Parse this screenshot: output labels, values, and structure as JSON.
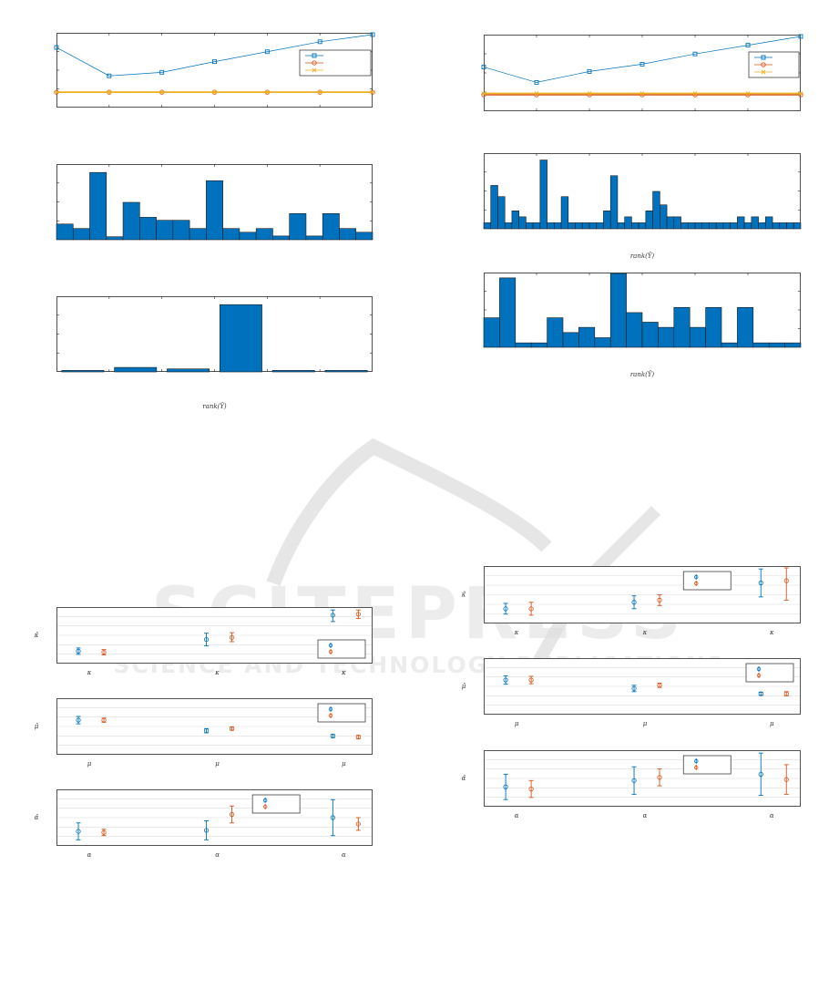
{
  "watermark": {
    "main": "SCITEPRESS",
    "sub": "SCIENCE AND TECHNOLOGY PUBLICATIONS",
    "color": "#dcdcdc"
  },
  "colors": {
    "blue": "#0072bd",
    "orange": "#d95319",
    "yellow": "#edb120",
    "bar_fill": "#0072bd",
    "axis": "#262626",
    "grid": "#dddddd"
  },
  "chart_data": [
    {
      "id": "L1",
      "type": "line",
      "ylim": [
        0,
        1
      ],
      "series": [
        {
          "color": "blue",
          "marker": "square",
          "x": [
            1,
            2,
            3,
            4,
            5,
            6,
            7
          ],
          "y": [
            0.82,
            0.42,
            0.47,
            0.62,
            0.76,
            0.9,
            1.0
          ]
        },
        {
          "color": "orange",
          "marker": "circle",
          "x": [
            1,
            2,
            3,
            4,
            5,
            6,
            7
          ],
          "y": [
            0.19,
            0.19,
            0.19,
            0.19,
            0.19,
            0.19,
            0.19
          ]
        },
        {
          "color": "yellow",
          "marker": "x",
          "x": [
            1,
            2,
            3,
            4,
            5,
            6,
            7
          ],
          "y": [
            0.19,
            0.19,
            0.19,
            0.19,
            0.19,
            0.19,
            0.19
          ]
        }
      ],
      "legend": "top-right"
    },
    {
      "id": "B1",
      "type": "bar",
      "ylim": [
        0,
        1
      ],
      "values": [
        0.21,
        0.15,
        0.9,
        0.04,
        0.5,
        0.3,
        0.26,
        0.26,
        0.15,
        0.79,
        0.15,
        0.1,
        0.15,
        0.05,
        0.35,
        0.05,
        0.35,
        0.15,
        0.1
      ]
    },
    {
      "id": "B2",
      "type": "bar",
      "ylim": [
        0,
        1
      ],
      "xlabel": "rank(Ŷ)",
      "values": [
        0.02,
        0.06,
        0.04,
        0.9,
        0.02,
        0.02
      ]
    },
    {
      "id": "L2",
      "type": "line",
      "ylim": [
        0,
        1
      ],
      "series": [
        {
          "color": "blue",
          "marker": "square",
          "x": [
            1,
            2,
            3,
            4,
            5,
            6,
            7
          ],
          "y": [
            0.58,
            0.37,
            0.52,
            0.62,
            0.76,
            0.88,
            1.0
          ]
        },
        {
          "color": "orange",
          "marker": "circle",
          "x": [
            1,
            2,
            3,
            4,
            5,
            6,
            7
          ],
          "y": [
            0.2,
            0.2,
            0.2,
            0.2,
            0.2,
            0.2,
            0.2
          ]
        },
        {
          "color": "yellow",
          "marker": "x",
          "x": [
            1,
            2,
            3,
            4,
            5,
            6,
            7
          ],
          "y": [
            0.22,
            0.22,
            0.22,
            0.22,
            0.22,
            0.22,
            0.22
          ]
        }
      ],
      "legend": "top-right"
    },
    {
      "id": "B3",
      "type": "bar",
      "ylim": [
        0,
        1
      ],
      "xlabel": "rank(Ŷ)",
      "values": [
        0.08,
        0.58,
        0.43,
        0.08,
        0.24,
        0.16,
        0.08,
        0.08,
        0.92,
        0.08,
        0.08,
        0.43,
        0.08,
        0.08,
        0.08,
        0.08,
        0.08,
        0.24,
        0.71,
        0.08,
        0.16,
        0.08,
        0.08,
        0.24,
        0.5,
        0.32,
        0.16,
        0.16,
        0.08,
        0.08,
        0.08,
        0.08,
        0.08,
        0.08,
        0.08,
        0.08,
        0.16,
        0.08,
        0.16,
        0.08,
        0.16,
        0.08,
        0.08,
        0.08,
        0.08
      ]
    },
    {
      "id": "B4",
      "type": "bar",
      "ylim": [
        0,
        1
      ],
      "xlabel": "rank(Ŷ)",
      "values": [
        0.4,
        0.94,
        0.06,
        0.06,
        0.4,
        0.2,
        0.27,
        0.13,
        1.0,
        0.47,
        0.34,
        0.27,
        0.54,
        0.27,
        0.54,
        0.06,
        0.54,
        0.06,
        0.06,
        0.06
      ]
    },
    {
      "id": "E1",
      "type": "errorbar",
      "ylabel": "κ̂",
      "categories": [
        "κ",
        "κ",
        "κ"
      ],
      "ylim": [
        0,
        1
      ],
      "groups": [
        [
          {
            "color": "blue",
            "y": 0.2,
            "lo": 0.14,
            "hi": 0.26
          },
          {
            "color": "orange",
            "y": 0.18,
            "lo": 0.13,
            "hi": 0.23
          }
        ],
        [
          {
            "color": "blue",
            "y": 0.42,
            "lo": 0.3,
            "hi": 0.54
          },
          {
            "color": "orange",
            "y": 0.46,
            "lo": 0.38,
            "hi": 0.55
          }
        ],
        [
          {
            "color": "blue",
            "y": 0.88,
            "lo": 0.76,
            "hi": 0.98
          },
          {
            "color": "orange",
            "y": 0.9,
            "lo": 0.82,
            "hi": 0.98
          }
        ]
      ],
      "legend": "right"
    },
    {
      "id": "E2",
      "type": "errorbar",
      "ylabel": "μ̂",
      "categories": [
        "μ",
        "μ",
        "μ"
      ],
      "ylim": [
        0,
        1
      ],
      "groups": [
        [
          {
            "color": "blue",
            "y": 0.62,
            "lo": 0.55,
            "hi": 0.69
          },
          {
            "color": "orange",
            "y": 0.62,
            "lo": 0.58,
            "hi": 0.66
          }
        ],
        [
          {
            "color": "blue",
            "y": 0.42,
            "lo": 0.38,
            "hi": 0.46
          },
          {
            "color": "orange",
            "y": 0.46,
            "lo": 0.43,
            "hi": 0.49
          }
        ],
        [
          {
            "color": "blue",
            "y": 0.32,
            "lo": 0.29,
            "hi": 0.35
          },
          {
            "color": "orange",
            "y": 0.3,
            "lo": 0.27,
            "hi": 0.33
          }
        ]
      ],
      "legend": "top-right"
    },
    {
      "id": "E3",
      "type": "errorbar",
      "ylabel": "α̂",
      "categories": [
        "α",
        "α",
        "α"
      ],
      "ylim": [
        0,
        1
      ],
      "groups": [
        [
          {
            "color": "blue",
            "y": 0.24,
            "lo": 0.08,
            "hi": 0.4
          },
          {
            "color": "orange",
            "y": 0.22,
            "lo": 0.16,
            "hi": 0.28
          }
        ],
        [
          {
            "color": "blue",
            "y": 0.26,
            "lo": 0.08,
            "hi": 0.44
          },
          {
            "color": "orange",
            "y": 0.56,
            "lo": 0.4,
            "hi": 0.72
          }
        ],
        [
          {
            "color": "blue",
            "y": 0.5,
            "lo": 0.16,
            "hi": 0.84
          },
          {
            "color": "orange",
            "y": 0.38,
            "lo": 0.26,
            "hi": 0.5
          }
        ]
      ],
      "legend": "top-center"
    },
    {
      "id": "E4",
      "type": "errorbar",
      "ylabel": "κ̂",
      "categories": [
        "κ",
        "κ",
        "κ"
      ],
      "ylim": [
        0,
        1
      ],
      "groups": [
        [
          {
            "color": "blue",
            "y": 0.24,
            "lo": 0.14,
            "hi": 0.34
          },
          {
            "color": "orange",
            "y": 0.24,
            "lo": 0.12,
            "hi": 0.36
          }
        ],
        [
          {
            "color": "blue",
            "y": 0.36,
            "lo": 0.24,
            "hi": 0.48
          },
          {
            "color": "orange",
            "y": 0.4,
            "lo": 0.3,
            "hi": 0.5
          }
        ],
        [
          {
            "color": "blue",
            "y": 0.72,
            "lo": 0.46,
            "hi": 0.98
          },
          {
            "color": "orange",
            "y": 0.76,
            "lo": 0.4,
            "hi": 1.0
          }
        ]
      ],
      "legend": "top-center-right"
    },
    {
      "id": "E5",
      "type": "errorbar",
      "ylabel": "μ̂",
      "categories": [
        "μ",
        "μ",
        "μ"
      ],
      "ylim": [
        0,
        1
      ],
      "groups": [
        [
          {
            "color": "blue",
            "y": 0.62,
            "lo": 0.54,
            "hi": 0.7
          },
          {
            "color": "orange",
            "y": 0.62,
            "lo": 0.55,
            "hi": 0.69
          }
        ],
        [
          {
            "color": "blue",
            "y": 0.46,
            "lo": 0.4,
            "hi": 0.52
          },
          {
            "color": "orange",
            "y": 0.52,
            "lo": 0.48,
            "hi": 0.56
          }
        ],
        [
          {
            "color": "blue",
            "y": 0.36,
            "lo": 0.33,
            "hi": 0.39
          },
          {
            "color": "orange",
            "y": 0.36,
            "lo": 0.32,
            "hi": 0.4
          }
        ]
      ],
      "legend": "top-right"
    },
    {
      "id": "E6",
      "type": "errorbar",
      "ylabel": "α̂",
      "categories": [
        "α",
        "α",
        "α"
      ],
      "ylim": [
        0,
        1
      ],
      "groups": [
        [
          {
            "color": "blue",
            "y": 0.34,
            "lo": 0.1,
            "hi": 0.58
          },
          {
            "color": "orange",
            "y": 0.3,
            "lo": 0.14,
            "hi": 0.46
          }
        ],
        [
          {
            "color": "blue",
            "y": 0.46,
            "lo": 0.2,
            "hi": 0.72
          },
          {
            "color": "orange",
            "y": 0.52,
            "lo": 0.36,
            "hi": 0.68
          }
        ],
        [
          {
            "color": "blue",
            "y": 0.58,
            "lo": 0.18,
            "hi": 0.98
          },
          {
            "color": "orange",
            "y": 0.48,
            "lo": 0.2,
            "hi": 0.76
          }
        ]
      ],
      "legend": "top-center-right"
    }
  ]
}
